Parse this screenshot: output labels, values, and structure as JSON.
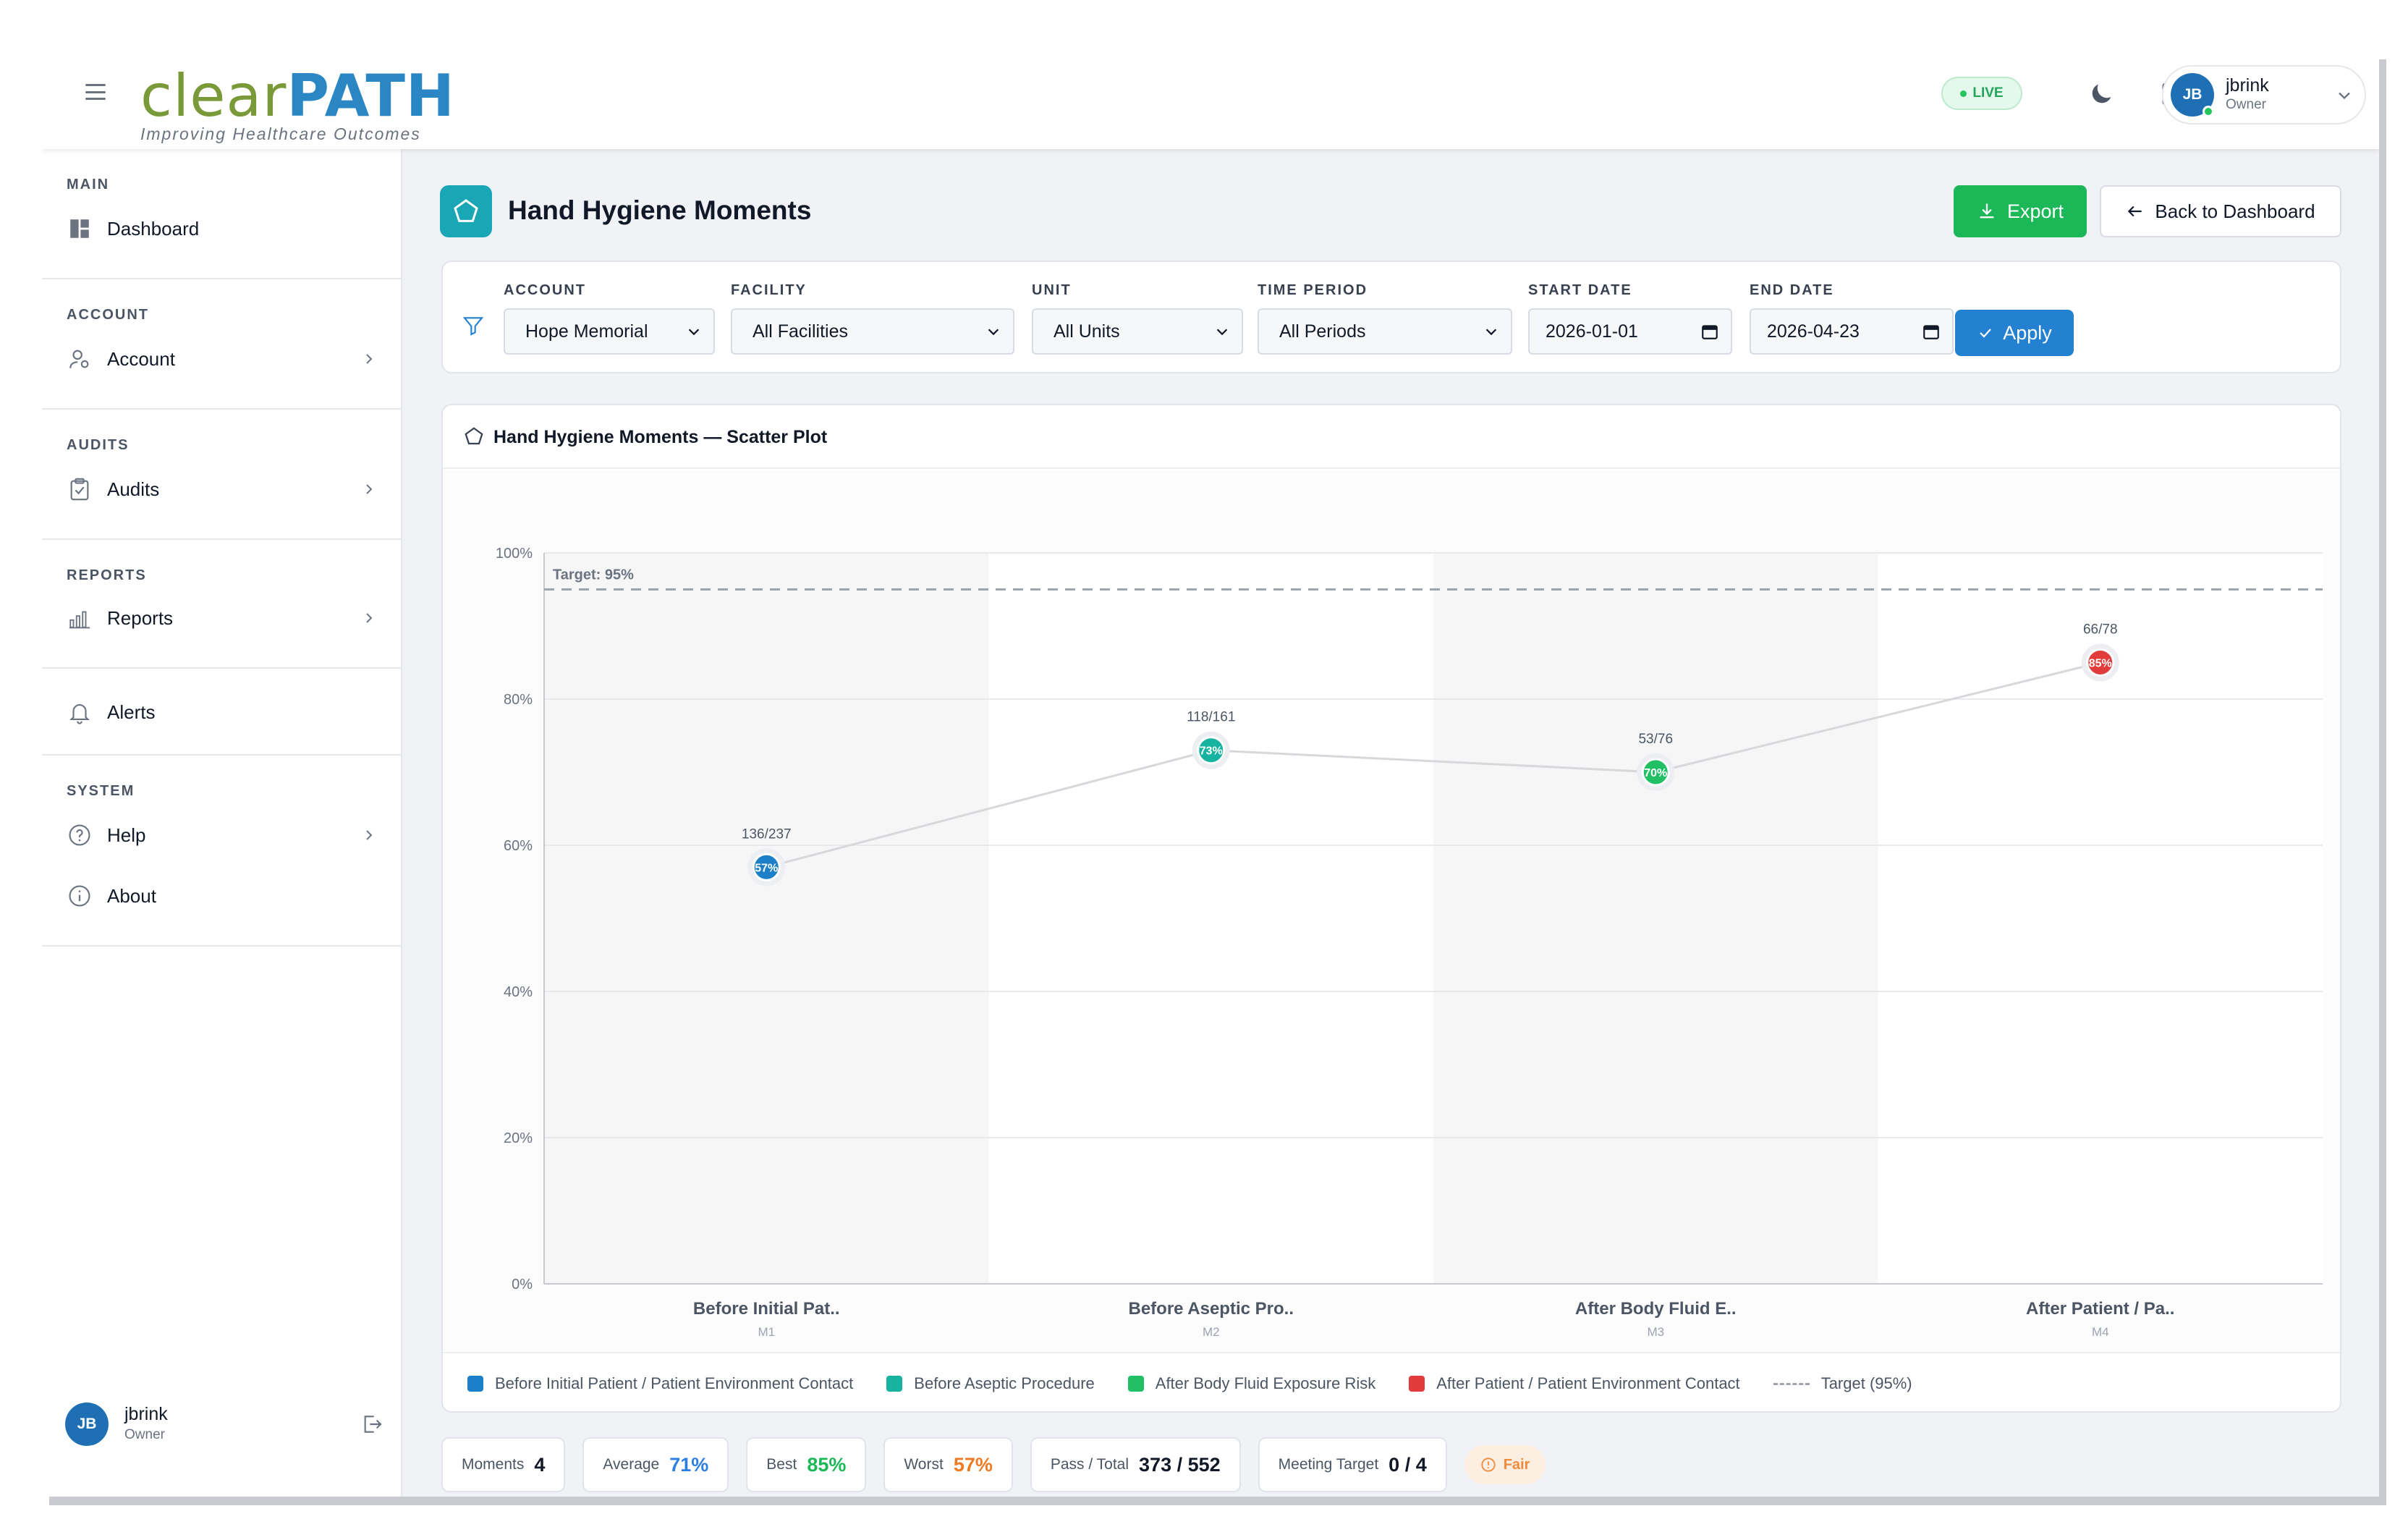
{
  "app": {
    "logo_part1": "clear",
    "logo_part2": "PATH",
    "tagline": "Improving Healthcare Outcomes",
    "live_label": "LIVE",
    "user": {
      "initials": "JB",
      "name": "jbrink",
      "role": "Owner"
    }
  },
  "sidebar": {
    "sections": [
      {
        "title": "MAIN",
        "items": [
          {
            "label": "Dashboard",
            "icon": "dashboard-icon"
          }
        ]
      },
      {
        "title": "ACCOUNT",
        "items": [
          {
            "label": "Account",
            "icon": "user-settings-icon"
          }
        ]
      },
      {
        "title": "AUDITS",
        "items": [
          {
            "label": "Audits",
            "icon": "clipboard-icon"
          }
        ]
      },
      {
        "title": "REPORTS",
        "items": [
          {
            "label": "Reports",
            "icon": "bar-chart-icon"
          }
        ]
      },
      {
        "title": "",
        "items": [
          {
            "label": "Alerts",
            "icon": "bell-icon"
          }
        ]
      },
      {
        "title": "SYSTEM",
        "items": [
          {
            "label": "Help",
            "icon": "help-icon"
          },
          {
            "label": "About",
            "icon": "info-icon"
          }
        ]
      }
    ]
  },
  "page": {
    "title": "Hand Hygiene Moments",
    "export_label": "Export",
    "back_label": "Back to Dashboard"
  },
  "filters": {
    "account": {
      "label": "ACCOUNT",
      "value": "Hope Memorial"
    },
    "facility": {
      "label": "FACILITY",
      "value": "All Facilities"
    },
    "unit": {
      "label": "UNIT",
      "value": "All Units"
    },
    "time_period": {
      "label": "TIME PERIOD",
      "value": "All Periods"
    },
    "start_date": {
      "label": "START DATE",
      "value": "2026-01-01"
    },
    "end_date": {
      "label": "END DATE",
      "value": "2026-04-23"
    },
    "apply_label": "Apply"
  },
  "chart_card": {
    "title": "Hand Hygiene Moments — Scatter Plot"
  },
  "chart_data": {
    "type": "scatter",
    "categories": [
      "Before Initial Pat..",
      "Before Aseptic Pro..",
      "After Body Fluid E..",
      "After Patient / Pa.."
    ],
    "category_codes": [
      "M1",
      "M2",
      "M3",
      "M4"
    ],
    "values": [
      57,
      73,
      70,
      85
    ],
    "point_labels": [
      "57%",
      "73%",
      "70%",
      "85%"
    ],
    "fractions": [
      "136/237",
      "118/161",
      "53/76",
      "66/78"
    ],
    "colors": [
      "#1c7fc7",
      "#16b3a0",
      "#22c064",
      "#e23b3b"
    ],
    "target": 95,
    "target_label": "Target: 95%",
    "ylim": [
      0,
      100
    ],
    "yticks": [
      "0%",
      "20%",
      "40%",
      "60%",
      "80%",
      "100%"
    ],
    "ytick_values": [
      0,
      20,
      40,
      60,
      80,
      100
    ],
    "connector_color": "#d6d8dc",
    "grid": true,
    "legend_position": "bottom",
    "legend": [
      {
        "label": "Before Initial Patient / Patient Environment Contact",
        "color": "#1c7fc7"
      },
      {
        "label": "Before Aseptic Procedure",
        "color": "#16b3a0"
      },
      {
        "label": "After Body Fluid Exposure Risk",
        "color": "#22c064"
      },
      {
        "label": "After Patient / Patient Environment Contact",
        "color": "#e23b3b"
      },
      {
        "label": "Target (95%)",
        "color": "#9ca3af"
      }
    ]
  },
  "stats": {
    "moments": {
      "label": "Moments",
      "value": "4"
    },
    "average": {
      "label": "Average",
      "value": "71%",
      "color": "#2b7fe0"
    },
    "best": {
      "label": "Best",
      "value": "85%",
      "color": "#1cb857"
    },
    "worst": {
      "label": "Worst",
      "value": "57%",
      "color": "#f07a22"
    },
    "pass_total": {
      "label": "Pass / Total",
      "value": "373 / 552"
    },
    "meeting_target": {
      "label": "Meeting Target",
      "value": "0 / 4"
    },
    "rating": {
      "label": "Fair"
    }
  }
}
